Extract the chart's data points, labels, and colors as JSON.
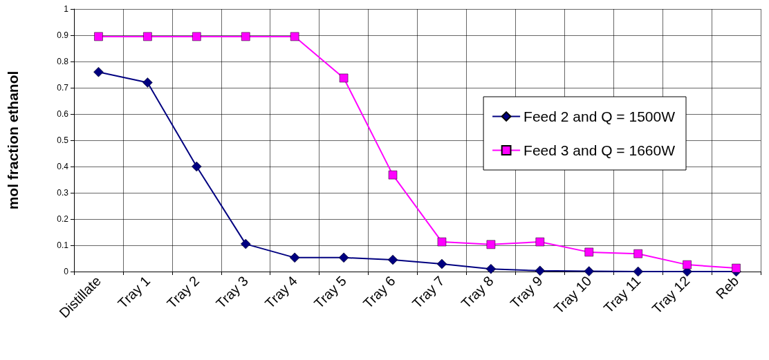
{
  "chart_data": {
    "type": "line",
    "ylabel": "mol fraction ethanol",
    "categories": [
      "Distillate",
      "Tray 1",
      "Tray 2",
      "Tray 3",
      "Tray 4",
      "Tray 5",
      "Tray 6",
      "Tray 7",
      "Tray 8",
      "Tray 9",
      "Tray 10",
      "Tray 11",
      "Tray 12",
      "Reb"
    ],
    "series": [
      {
        "name": "Feed 2 and Q = 1500W",
        "color": "#000080",
        "marker": "diamond",
        "values": [
          0.76,
          0.72,
          0.4,
          0.105,
          0.053,
          0.053,
          0.045,
          0.029,
          0.01,
          0.003,
          0.001,
          0,
          0,
          0
        ]
      },
      {
        "name": "Feed 3 and Q = 1660W",
        "color": "#ff00ff",
        "marker": "square",
        "values": [
          0.895,
          0.895,
          0.895,
          0.895,
          0.895,
          0.737,
          0.368,
          0.113,
          0.103,
          0.113,
          0.074,
          0.068,
          0.026,
          0.013
        ]
      }
    ],
    "ylim": [
      0,
      1
    ],
    "yticks": [
      0,
      0.1,
      0.2,
      0.3,
      0.4,
      0.5,
      0.6,
      0.7,
      0.8,
      0.9,
      1
    ],
    "grid": true,
    "legend": "right",
    "line_style": "solid"
  }
}
